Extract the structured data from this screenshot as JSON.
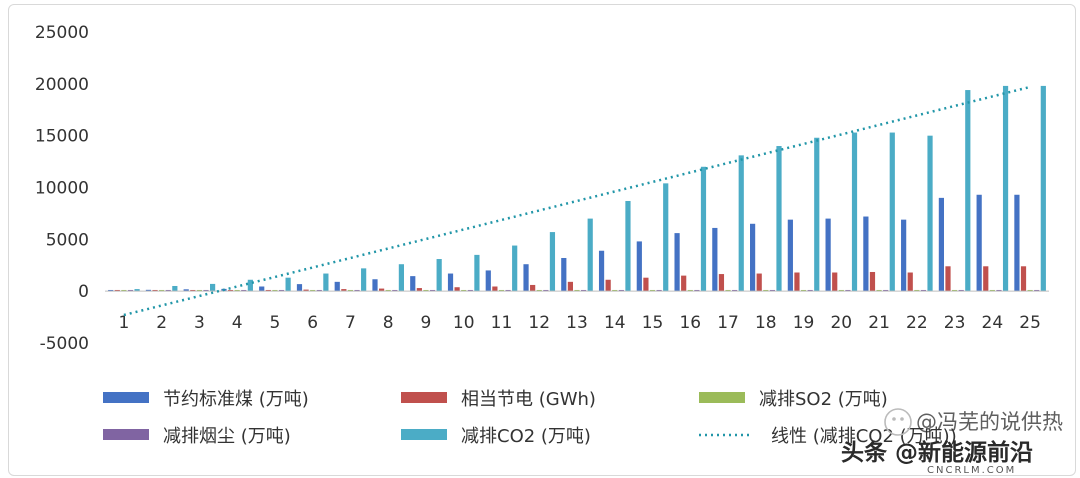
{
  "chart_data": {
    "type": "bar",
    "categories": [
      "1",
      "2",
      "3",
      "4",
      "5",
      "6",
      "7",
      "8",
      "9",
      "10",
      "11",
      "12",
      "13",
      "14",
      "15",
      "16",
      "17",
      "18",
      "19",
      "20",
      "21",
      "22",
      "23",
      "24",
      "25"
    ],
    "ylim": [
      -5000,
      25000
    ],
    "yticks": [
      -5000,
      0,
      5000,
      10000,
      15000,
      20000,
      25000
    ],
    "grid": false,
    "legend_position": "bottom",
    "series": [
      {
        "name": "节约标准煤 (万吨)",
        "color": "#4472c4",
        "values": [
          80,
          130,
          180,
          220,
          450,
          680,
          900,
          1150,
          1450,
          1700,
          2000,
          2600,
          3200,
          3900,
          4800,
          5600,
          6100,
          6500,
          6900,
          7000,
          7200,
          6900,
          9000,
          9300,
          9300
        ]
      },
      {
        "name": "相当节电 (GWh)",
        "color": "#c0504d",
        "values": [
          20,
          40,
          50,
          60,
          100,
          150,
          200,
          250,
          300,
          380,
          450,
          600,
          900,
          1100,
          1300,
          1500,
          1650,
          1700,
          1800,
          1800,
          1850,
          1800,
          2400,
          2400,
          2400
        ]
      },
      {
        "name": "减排SO2 (万吨)",
        "color": "#9bbb59",
        "values": [
          5,
          5,
          5,
          5,
          10,
          10,
          15,
          15,
          20,
          20,
          25,
          30,
          40,
          50,
          60,
          70,
          75,
          80,
          85,
          90,
          90,
          90,
          110,
          110,
          110
        ]
      },
      {
        "name": "减排烟尘 (万吨)",
        "color": "#8064a2",
        "values": [
          5,
          5,
          5,
          5,
          10,
          10,
          15,
          15,
          20,
          20,
          25,
          30,
          40,
          50,
          60,
          70,
          75,
          80,
          85,
          90,
          90,
          90,
          110,
          110,
          110
        ]
      },
      {
        "name": "减排CO2 (万吨)",
        "color": "#4bacc6",
        "values": [
          200,
          500,
          700,
          1100,
          1300,
          1700,
          2200,
          2600,
          3100,
          3500,
          4400,
          5700,
          7000,
          8700,
          10400,
          12000,
          13100,
          14000,
          14800,
          15300,
          15300,
          15000,
          19400,
          19800,
          19800
        ]
      }
    ],
    "trendline": {
      "name": "线性 (减排CO2 (万吨))",
      "color": "#2196a8",
      "style": "dotted",
      "start": -2300,
      "end": 19700
    }
  },
  "watermark": {
    "line1": "@冯芜的说供热",
    "line2": "头条 @新能源前沿",
    "line3": "CNCRLM.COM"
  }
}
